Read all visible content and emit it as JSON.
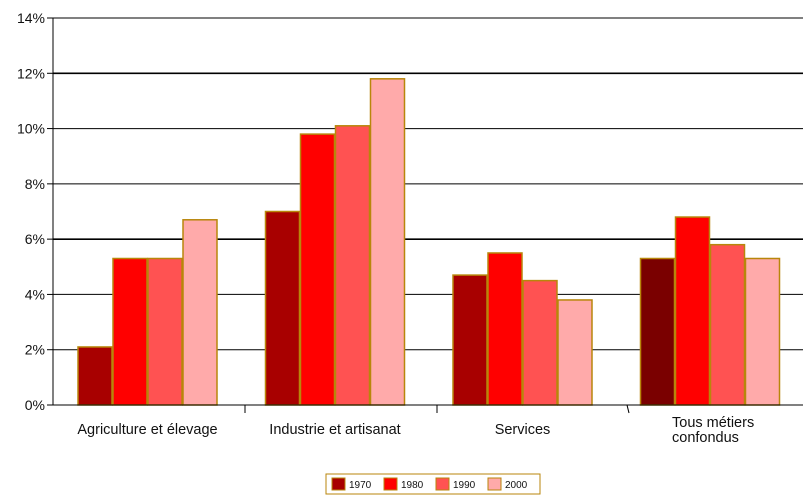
{
  "chart_data": {
    "type": "bar",
    "categories": [
      [
        "Agriculture et élevage"
      ],
      [
        "Industrie et artisanat"
      ],
      [
        "Services"
      ],
      [
        "Tous métiers",
        "confondus"
      ]
    ],
    "series": [
      {
        "name": "1970",
        "values": [
          2.1,
          7.0,
          4.7,
          5.3
        ],
        "color": "#a80000"
      },
      {
        "name": "1980",
        "values": [
          5.3,
          9.8,
          5.5,
          6.8
        ],
        "color": "#ff0000"
      },
      {
        "name": "1990",
        "values": [
          5.3,
          10.1,
          4.5,
          5.8
        ],
        "color": "#ff5252"
      },
      {
        "name": "2000",
        "values": [
          6.7,
          11.8,
          3.8,
          5.3
        ],
        "color": "#ffaaaa"
      }
    ],
    "first_bar_overrides": {
      "3": "#7a0000"
    },
    "yticks": [
      "0%",
      "2%",
      "4%",
      "6%",
      "8%",
      "10%",
      "12%",
      "14%"
    ],
    "ylim": [
      0,
      14
    ],
    "grid": true,
    "legend_position": "bottom-center",
    "bar_border_color": "#b8860b"
  }
}
